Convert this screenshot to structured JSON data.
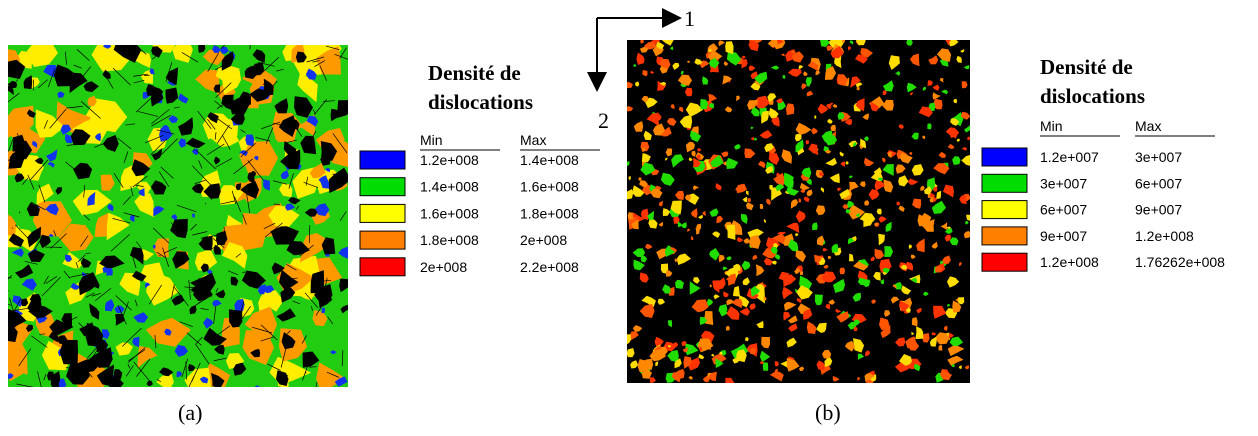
{
  "figure": {
    "orientation": {
      "x_label": "1",
      "y_label": "2"
    },
    "panels": [
      {
        "caption": "(a)",
        "legend": {
          "title_line1": "Densité de",
          "title_line2": "dislocations",
          "headers": [
            "Min",
            "Max"
          ],
          "rows": [
            {
              "color": "#0000ff",
              "min": "1.2e+008",
              "max": "1.4e+008"
            },
            {
              "color": "#00dd00",
              "min": "1.4e+008",
              "max": "1.6e+008"
            },
            {
              "color": "#ffff00",
              "min": "1.6e+008",
              "max": "1.8e+008"
            },
            {
              "color": "#ff8000",
              "min": "1.8e+008",
              "max": "2e+008"
            },
            {
              "color": "#ff0000",
              "min": "2e+008",
              "max": "2.2e+008"
            }
          ]
        }
      },
      {
        "caption": "(b)",
        "legend": {
          "title_line1": "Densité de",
          "title_line2": "dislocations",
          "headers": [
            "Min",
            "Max"
          ],
          "rows": [
            {
              "color": "#0000ff",
              "min": "1.2e+007",
              "max": "3e+007"
            },
            {
              "color": "#00dd00",
              "min": "3e+007",
              "max": "6e+007"
            },
            {
              "color": "#ffff00",
              "min": "6e+007",
              "max": "9e+007"
            },
            {
              "color": "#ff8000",
              "min": "9e+007",
              "max": "1.2e+008"
            },
            {
              "color": "#ff0000",
              "min": "1.2e+008",
              "max": "1.76262e+008"
            }
          ]
        }
      }
    ]
  }
}
